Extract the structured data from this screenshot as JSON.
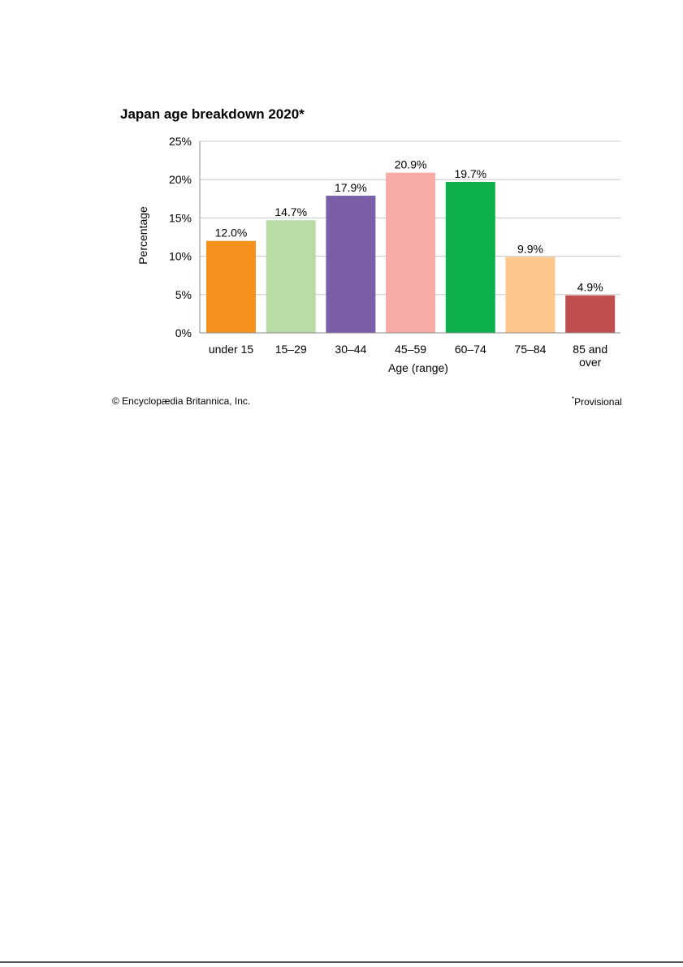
{
  "chart_data": {
    "type": "bar",
    "title": "Japan age breakdown 2020*",
    "xlabel": "Age (range)",
    "ylabel": "Percentage",
    "ylim": [
      0,
      25
    ],
    "yticks": [
      0,
      5,
      10,
      15,
      20,
      25
    ],
    "ytick_labels": [
      "0%",
      "5%",
      "10%",
      "15%",
      "20%",
      "25%"
    ],
    "grid": true,
    "categories": [
      [
        "under 15"
      ],
      [
        "15–29"
      ],
      [
        "30–44"
      ],
      [
        "45–59"
      ],
      [
        "60–74"
      ],
      [
        "75–84"
      ],
      [
        "85 and",
        "over"
      ]
    ],
    "values": [
      12.0,
      14.7,
      17.9,
      20.9,
      19.7,
      9.9,
      4.9
    ],
    "data_labels": [
      "12.0%",
      "14.7%",
      "17.9%",
      "20.9%",
      "19.7%",
      "9.9%",
      "4.9%"
    ],
    "colors": [
      "#f5921e",
      "#b9dba4",
      "#7a5fa8",
      "#f8aaa6",
      "#0cb14b",
      "#fdc68b",
      "#c14f4f"
    ],
    "grid_color": "#c8c8c8",
    "axis_color": "#8c8c8c"
  },
  "credit": "© Encyclopædia Britannica, Inc.",
  "footnote": {
    "mark": "*",
    "text": "Provisional"
  }
}
